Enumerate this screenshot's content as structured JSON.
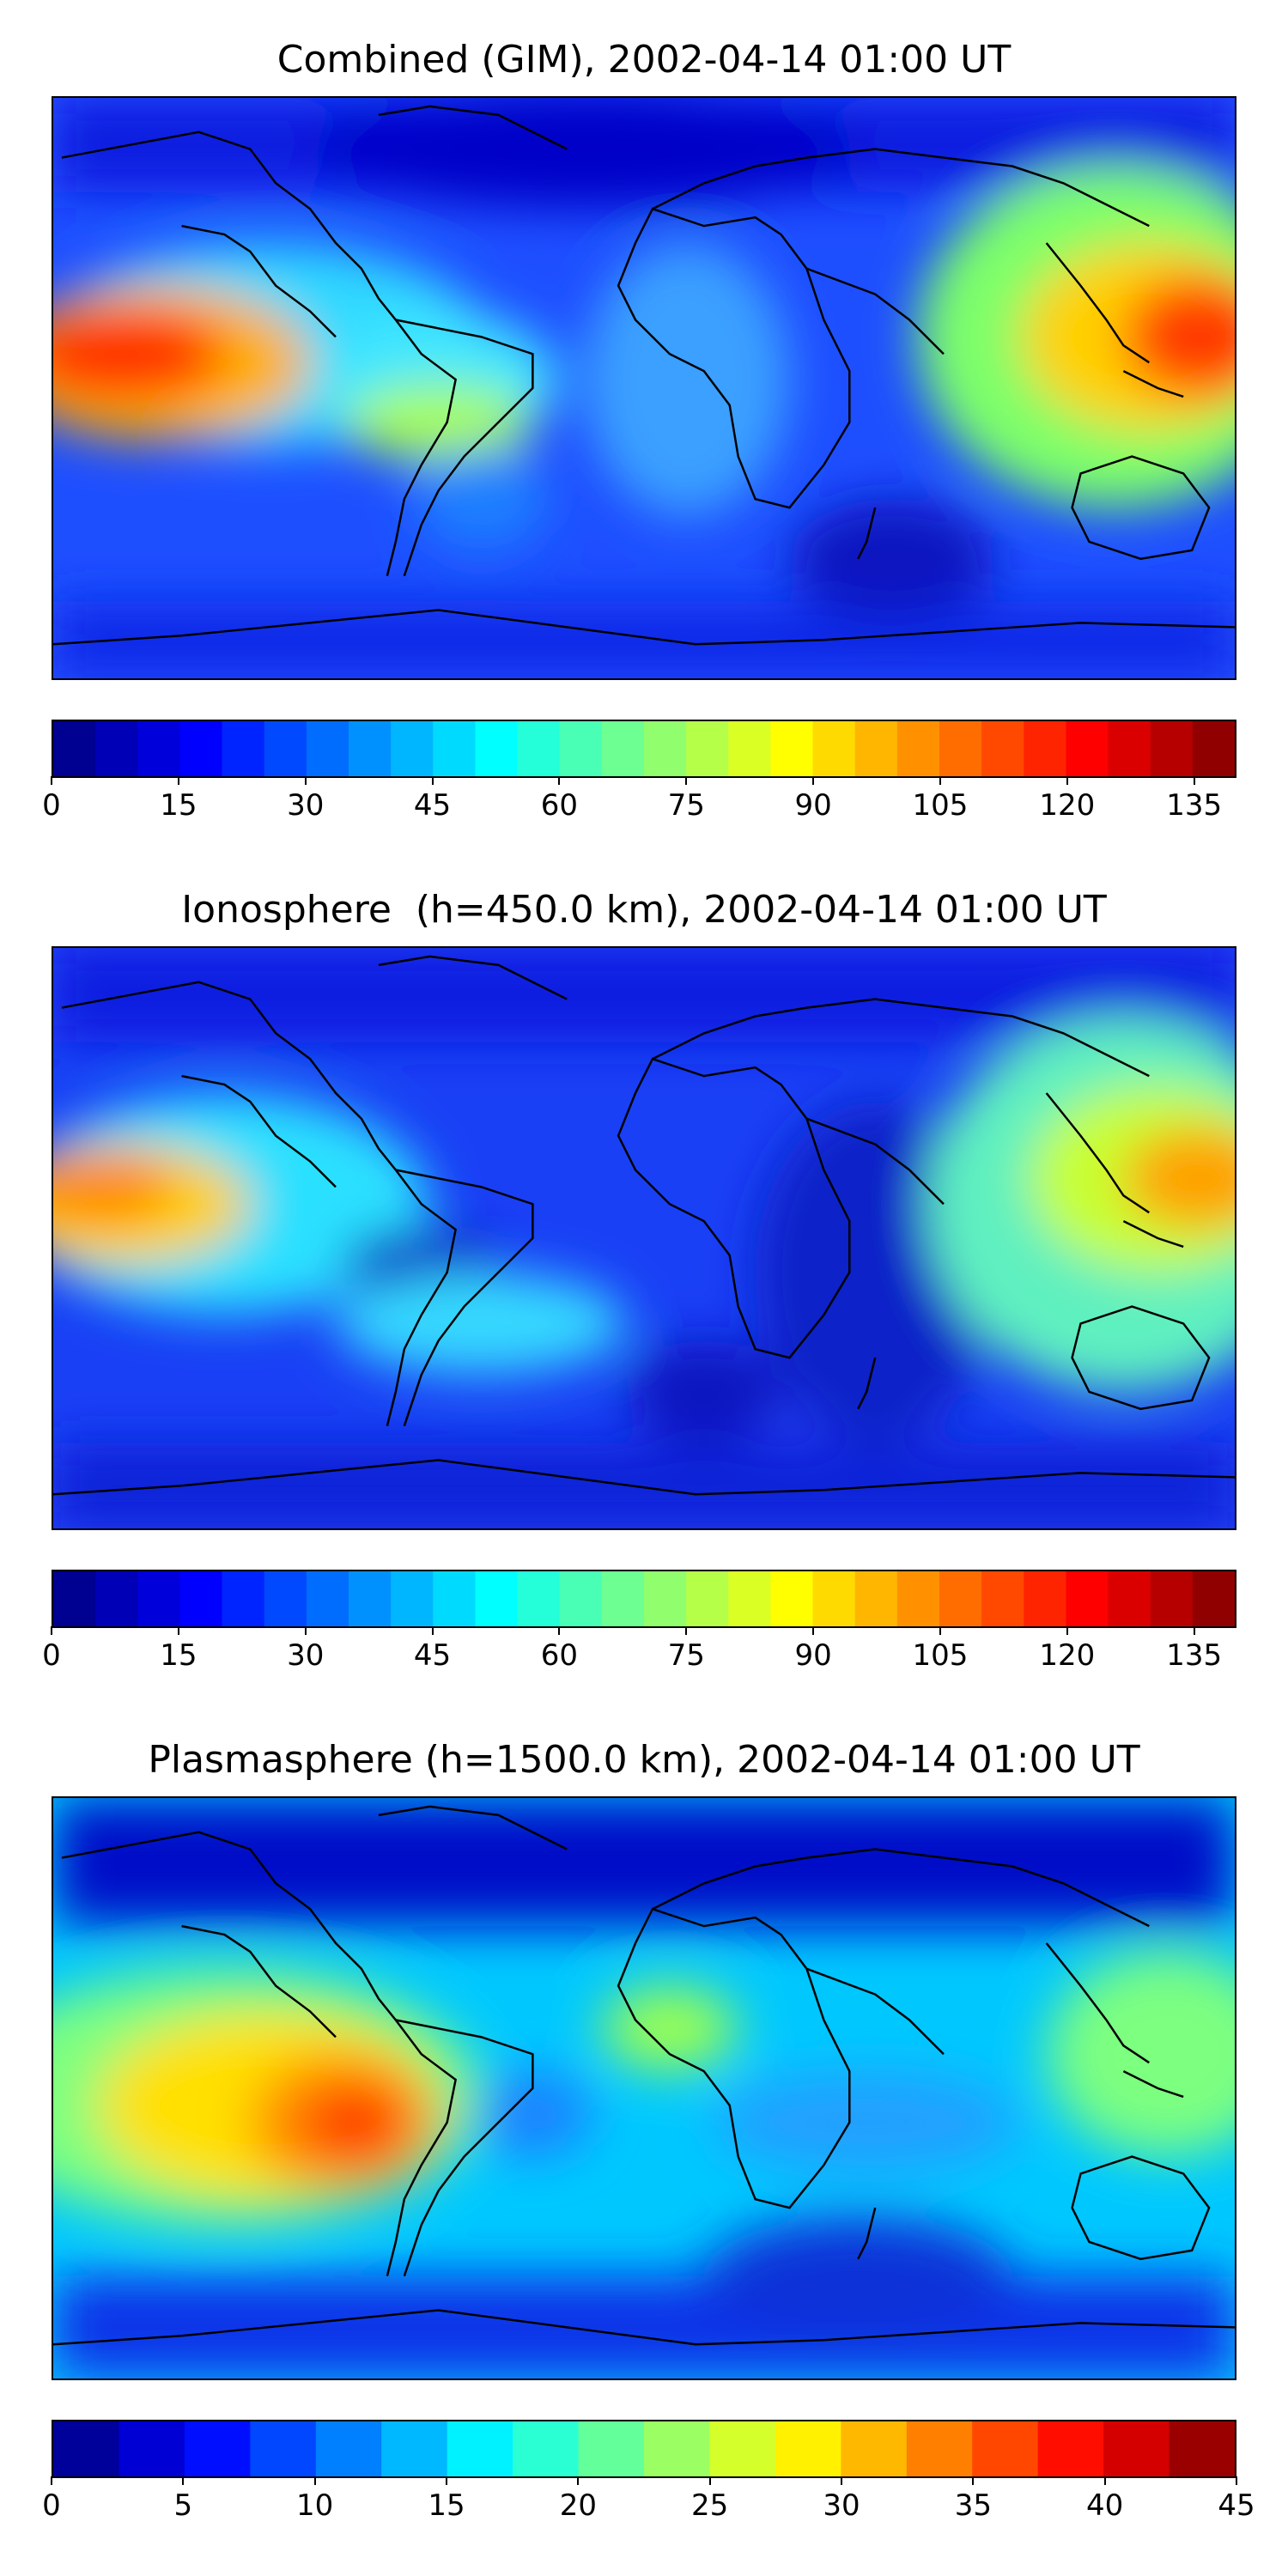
{
  "panels": [
    {
      "title": "Combined (GIM), 2002-04-14 01:00 UT",
      "map_icon": "world-map-tec-contour",
      "colorbar": {
        "colormap": "jet",
        "min": 0,
        "max": 140,
        "bands": 28,
        "ticks": [
          "0",
          "15",
          "30",
          "45",
          "60",
          "75",
          "90",
          "105",
          "120",
          "135"
        ],
        "tick_values": [
          0,
          15,
          30,
          45,
          60,
          75,
          90,
          105,
          120,
          135
        ]
      }
    },
    {
      "title": "Ionosphere  (h=450.0 km), 2002-04-14 01:00 UT",
      "map_icon": "world-map-tec-contour",
      "colorbar": {
        "colormap": "jet",
        "min": 0,
        "max": 140,
        "bands": 28,
        "ticks": [
          "0",
          "15",
          "30",
          "45",
          "60",
          "75",
          "90",
          "105",
          "120",
          "135"
        ],
        "tick_values": [
          0,
          15,
          30,
          45,
          60,
          75,
          90,
          105,
          120,
          135
        ]
      }
    },
    {
      "title": "Plasmasphere (h=1500.0 km), 2002-04-14 01:00 UT",
      "map_icon": "world-map-tec-contour",
      "colorbar": {
        "colormap": "jet",
        "min": 0,
        "max": 45,
        "bands": 18,
        "ticks": [
          "0",
          "5",
          "10",
          "15",
          "20",
          "25",
          "30",
          "35",
          "40",
          "45"
        ],
        "tick_values": [
          0,
          5,
          10,
          15,
          20,
          25,
          30,
          35,
          40,
          45
        ]
      }
    }
  ],
  "colors": {
    "jet_stops": [
      "#00007f",
      "#0000ff",
      "#007fff",
      "#00ffff",
      "#7fff7f",
      "#ffff00",
      "#ff7f00",
      "#ff0000",
      "#7f0000"
    ],
    "coastline": "#000000",
    "frame": "#000000"
  }
}
